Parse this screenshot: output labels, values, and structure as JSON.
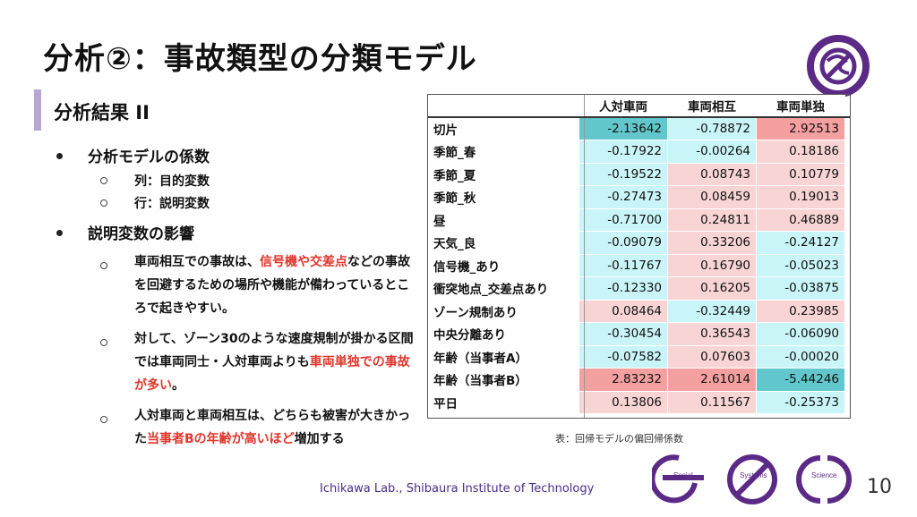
{
  "slide": {
    "title": "分析②：事故類型の分類モデル",
    "section_title": "分析結果 II",
    "bullets": [
      {
        "text": "分析モデルの係数",
        "subitems": [
          "列：目的変数",
          "行：説明変数"
        ]
      },
      {
        "text": "説明変数の影響",
        "paragraphs": [
          [
            {
              "t": "車両相互での事故は、",
              "hl": false
            },
            {
              "t": "信号機や交差点",
              "hl": true
            },
            {
              "t": "などの事故を回避するための場所や機能が備わっているところで起きやすい。",
              "hl": false
            }
          ],
          [
            {
              "t": "対して、ゾーン30のような速度規制が掛かる区間では車両同士・人対車両よりも",
              "hl": false
            },
            {
              "t": "車両単独での事故が多い",
              "hl": true
            },
            {
              "t": "。",
              "hl": false
            }
          ],
          [
            {
              "t": "人対車両と車両相互は、どちらも被害が大きかった",
              "hl": false
            },
            {
              "t": "当事者Bの年齢が高いほど",
              "hl": true
            },
            {
              "t": "増加する",
              "hl": false
            }
          ]
        ]
      }
    ],
    "colors": {
      "highlight_red": "#e0352b",
      "accent_purple": "#5b2a86",
      "section_bar": "#b7a6d1"
    },
    "table": {
      "columns": [
        "",
        "人対車両",
        "車両相互",
        "車両単独"
      ],
      "rows": [
        {
          "label": "切片",
          "values": [
            "-2.13642",
            "-0.78872",
            "2.92513"
          ],
          "colors": [
            "#62c7cc",
            "#c9f5f8",
            "#f4a0a0"
          ]
        },
        {
          "label": "季節_春",
          "values": [
            "-0.17922",
            "-0.00264",
            "0.18186"
          ],
          "colors": [
            "#c9f5f8",
            "#c9f5f8",
            "#f8d4d4"
          ]
        },
        {
          "label": "季節_夏",
          "values": [
            "-0.19522",
            "0.08743",
            "0.10779"
          ],
          "colors": [
            "#c9f5f8",
            "#f8d4d4",
            "#f8d4d4"
          ]
        },
        {
          "label": "季節_秋",
          "values": [
            "-0.27473",
            "0.08459",
            "0.19013"
          ],
          "colors": [
            "#c9f5f8",
            "#f8d4d4",
            "#f8d4d4"
          ]
        },
        {
          "label": "昼",
          "values": [
            "-0.71700",
            "0.24811",
            "0.46889"
          ],
          "colors": [
            "#c9f5f8",
            "#f8d4d4",
            "#f8d4d4"
          ]
        },
        {
          "label": "天気_良",
          "values": [
            "-0.09079",
            "0.33206",
            "-0.24127"
          ],
          "colors": [
            "#c9f5f8",
            "#f8d4d4",
            "#c9f5f8"
          ]
        },
        {
          "label": "信号機_あり",
          "values": [
            "-0.11767",
            "0.16790",
            "-0.05023"
          ],
          "colors": [
            "#c9f5f8",
            "#f8d4d4",
            "#c9f5f8"
          ]
        },
        {
          "label": "衝突地点_交差点あり",
          "values": [
            "-0.12330",
            "0.16205",
            "-0.03875"
          ],
          "colors": [
            "#c9f5f8",
            "#f8d4d4",
            "#c9f5f8"
          ]
        },
        {
          "label": "ゾーン規制あり",
          "values": [
            "0.08464",
            "-0.32449",
            "0.23985"
          ],
          "colors": [
            "#f8d4d4",
            "#c9f5f8",
            "#f8d4d4"
          ]
        },
        {
          "label": "中央分離あり",
          "values": [
            "-0.30454",
            "0.36543",
            "-0.06090"
          ],
          "colors": [
            "#c9f5f8",
            "#f8d4d4",
            "#c9f5f8"
          ]
        },
        {
          "label": "年齢（当事者A）",
          "values": [
            "-0.07582",
            "0.07603",
            "-0.00020"
          ],
          "colors": [
            "#c9f5f8",
            "#f8d4d4",
            "#c9f5f8"
          ]
        },
        {
          "label": "年齢（当事者B）",
          "values": [
            "2.83232",
            "2.61014",
            "-5.44246"
          ],
          "colors": [
            "#f4a0a0",
            "#f4a0a0",
            "#62c7cc"
          ]
        },
        {
          "label": "平日",
          "values": [
            "0.13806",
            "0.11567",
            "-0.25373"
          ],
          "colors": [
            "#f8d4d4",
            "#f8d4d4",
            "#c9f5f8"
          ]
        }
      ],
      "caption": "表：回帰モデルの偏回帰係数"
    },
    "footer": "Ichikawa Lab., Shibaura Institute of Technology",
    "bottom_logo_words": [
      "Social",
      "Systems",
      "Science"
    ],
    "page_number": "10"
  }
}
